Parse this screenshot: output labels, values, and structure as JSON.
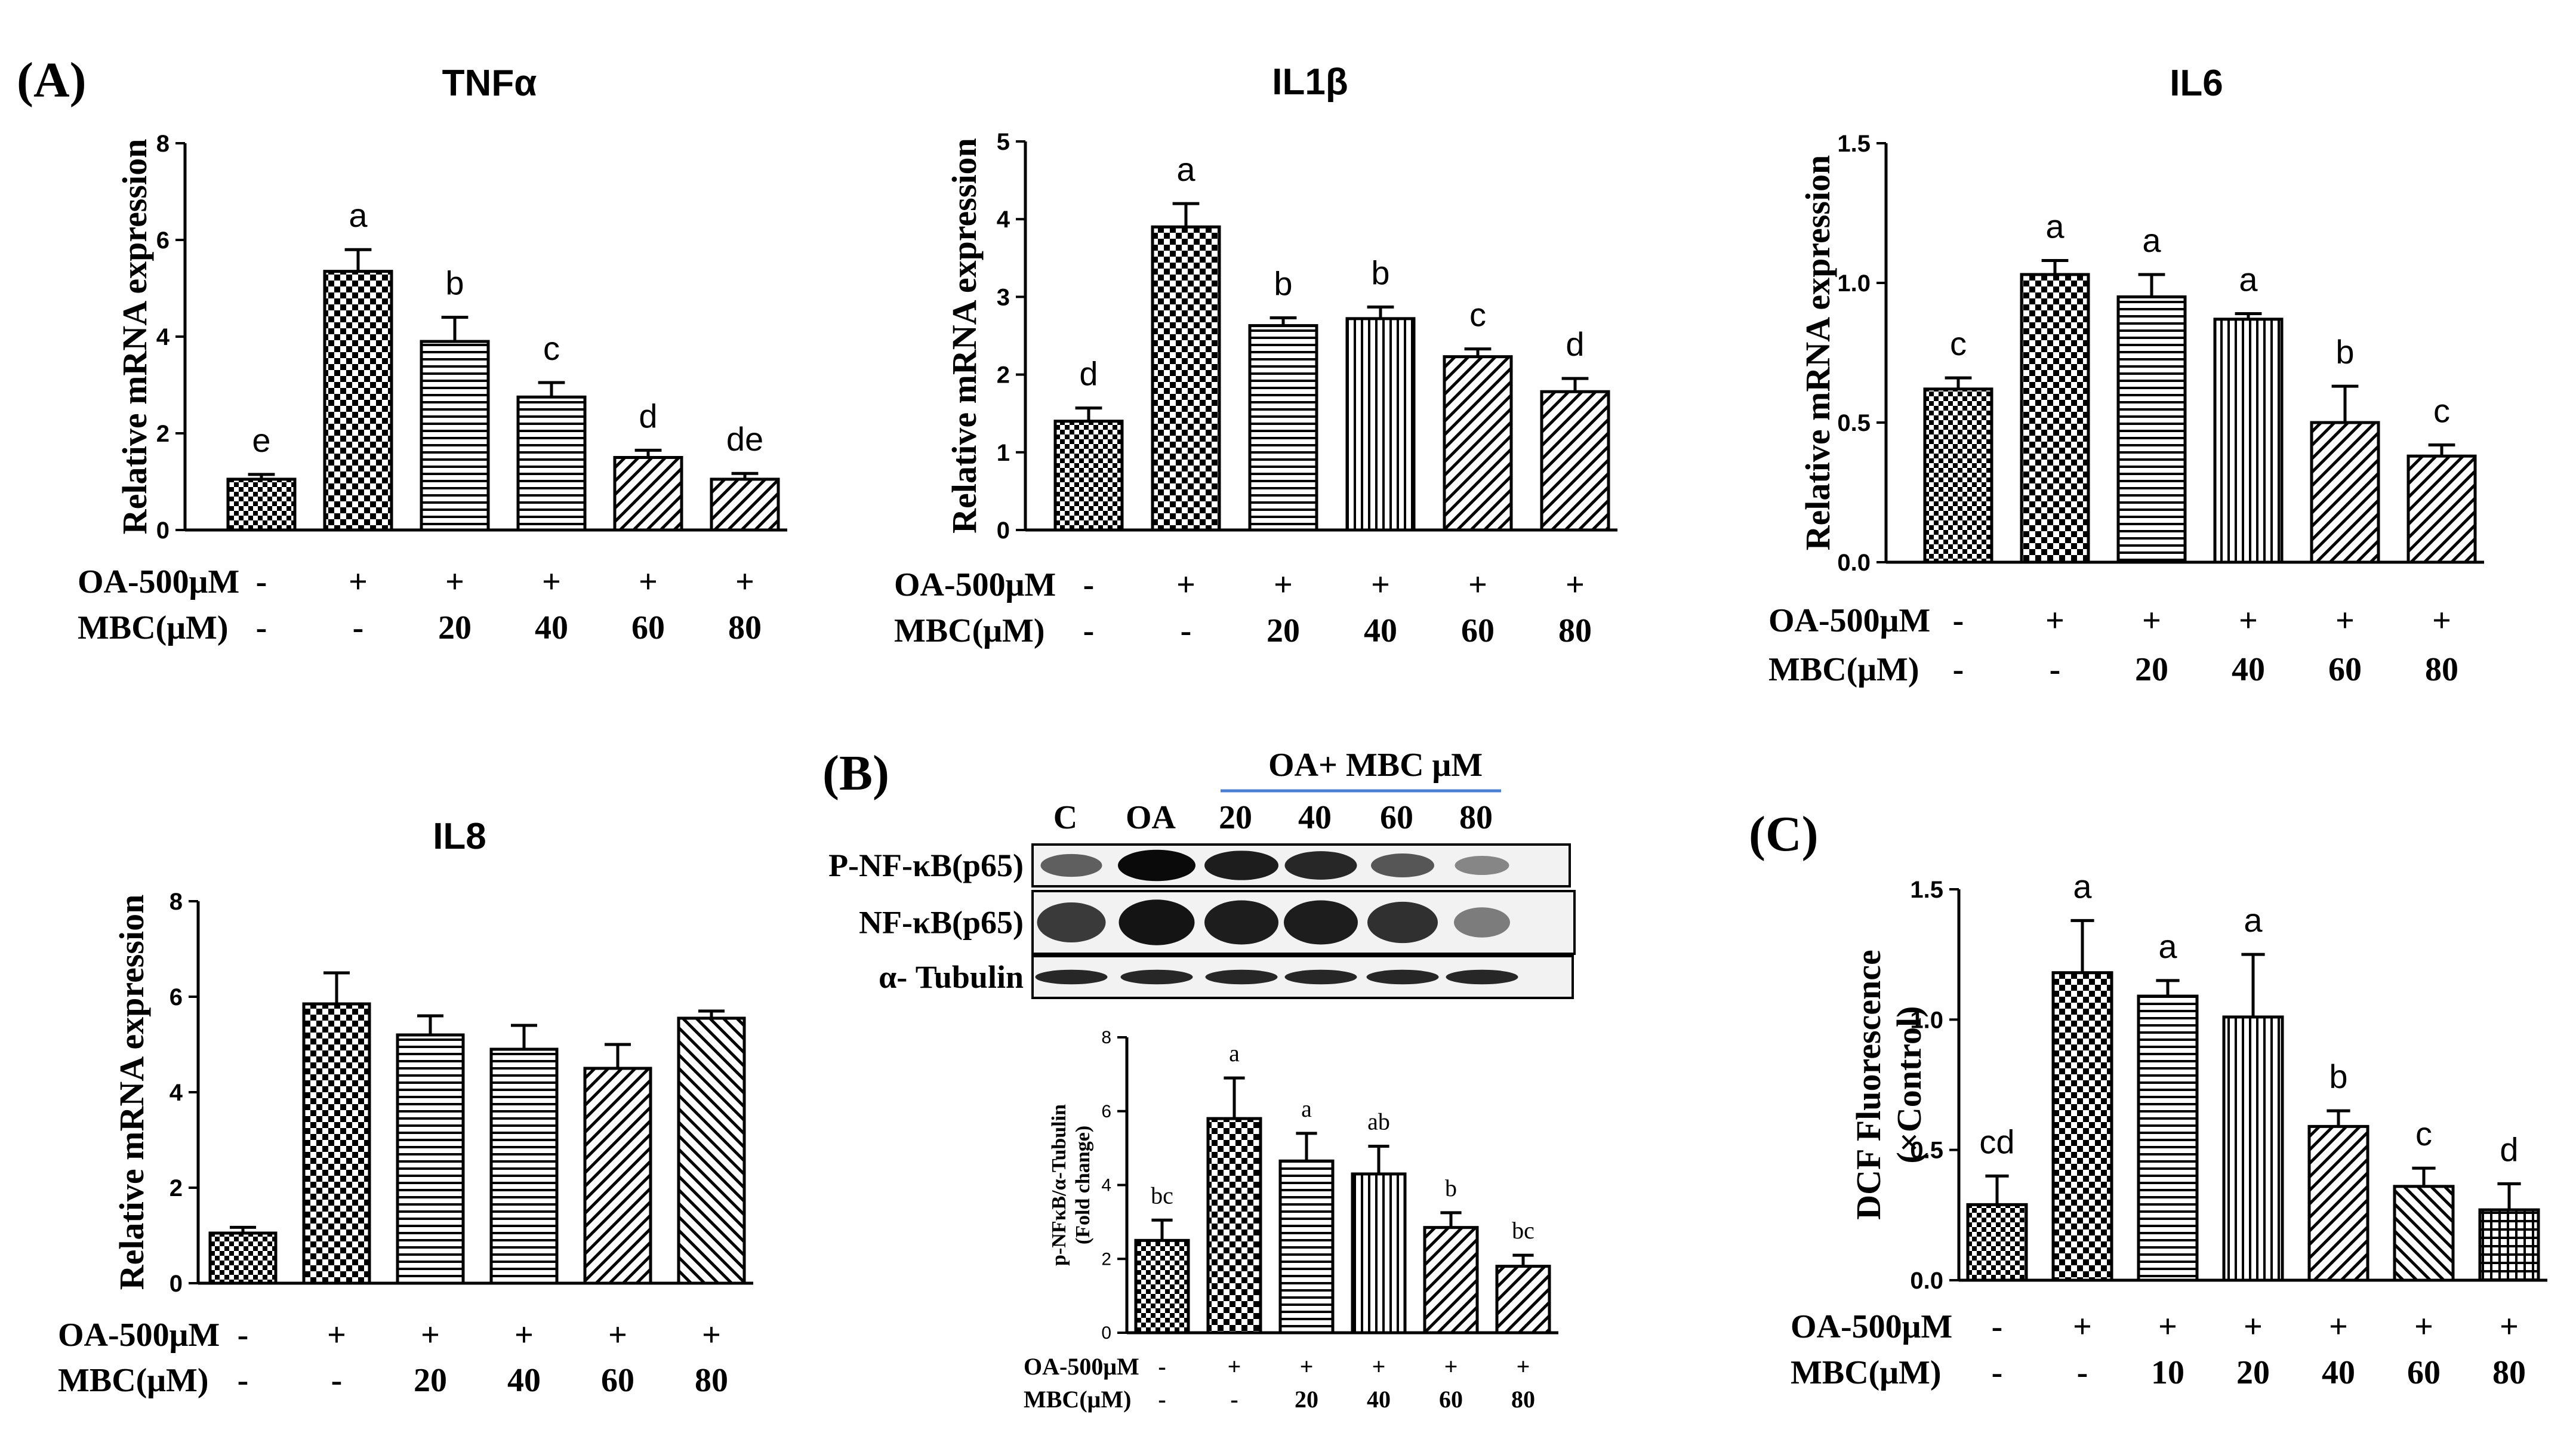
{
  "panels": {
    "A": "(A)",
    "B": "(B)",
    "C": "(C)"
  },
  "row_labels": {
    "oa": "OA-500μM",
    "mbc": "MBC(μM)"
  },
  "blot": {
    "group_label": "OA+ MBC μM",
    "columns": [
      "C",
      "OA",
      "20",
      "40",
      "60",
      "80"
    ],
    "rows": [
      {
        "label": "P-NF-κB(p65)",
        "intensity": [
          0.55,
          1.0,
          0.9,
          0.85,
          0.6,
          0.35
        ]
      },
      {
        "label": "NF-κB(p65)",
        "intensity": [
          0.75,
          0.95,
          0.9,
          0.9,
          0.8,
          0.4
        ]
      },
      {
        "label": "α- Tubulin",
        "intensity": [
          0.85,
          0.85,
          0.85,
          0.85,
          0.85,
          0.85
        ]
      }
    ]
  },
  "chart_data": [
    {
      "id": "tnf",
      "type": "bar",
      "title": "TNFα",
      "ylabel": "Relative mRNA expression",
      "ylim": [
        0,
        8
      ],
      "yticks": [
        "0",
        "2",
        "4",
        "6",
        "8"
      ],
      "values": [
        1.05,
        5.35,
        3.9,
        2.75,
        1.5,
        1.05
      ],
      "errors": [
        0.1,
        0.45,
        0.5,
        0.3,
        0.15,
        0.12
      ],
      "letters": [
        "e",
        "a",
        "b",
        "c",
        "d",
        "de"
      ],
      "oa": [
        "-",
        "+",
        "+",
        "+",
        "+",
        "+"
      ],
      "mbc": [
        "-",
        "-",
        "20",
        "40",
        "60",
        "80"
      ]
    },
    {
      "id": "il1b",
      "type": "bar",
      "title": "IL1β",
      "ylabel": "Relative mRNA expression",
      "ylim": [
        0,
        5
      ],
      "yticks": [
        "0",
        "1",
        "2",
        "3",
        "4",
        "5"
      ],
      "values": [
        1.4,
        3.9,
        2.63,
        2.72,
        2.23,
        1.78
      ],
      "errors": [
        0.17,
        0.3,
        0.1,
        0.15,
        0.1,
        0.17
      ],
      "letters": [
        "d",
        "a",
        "b",
        "b",
        "c",
        "d"
      ],
      "oa": [
        "-",
        "+",
        "+",
        "+",
        "+",
        "+"
      ],
      "mbc": [
        "-",
        "-",
        "20",
        "40",
        "60",
        "80"
      ]
    },
    {
      "id": "il6",
      "type": "bar",
      "title": "IL6",
      "ylabel": "Relative mRNA expression",
      "ylim": [
        0,
        1.5
      ],
      "yticks": [
        "0.0",
        "0.5",
        "1.0",
        "1.5"
      ],
      "values": [
        0.62,
        1.03,
        0.95,
        0.87,
        0.5,
        0.38
      ],
      "errors": [
        0.04,
        0.05,
        0.08,
        0.02,
        0.13,
        0.04
      ],
      "letters": [
        "c",
        "a",
        "a",
        "a",
        "b",
        "c"
      ],
      "oa": [
        "-",
        "+",
        "+",
        "+",
        "+",
        "+"
      ],
      "mbc": [
        "-",
        "-",
        "20",
        "40",
        "60",
        "80"
      ]
    },
    {
      "id": "il8",
      "type": "bar",
      "title": "IL8",
      "ylabel": "Relative mRNA expression",
      "ylim": [
        0,
        8
      ],
      "yticks": [
        "0",
        "2",
        "4",
        "6",
        "8"
      ],
      "values": [
        1.05,
        5.85,
        5.2,
        4.9,
        4.5,
        5.55
      ],
      "errors": [
        0.12,
        0.65,
        0.4,
        0.5,
        0.5,
        0.15
      ],
      "letters": [
        "",
        "",
        "",
        "",
        "",
        ""
      ],
      "oa": [
        "-",
        "+",
        "+",
        "+",
        "+",
        "+"
      ],
      "mbc": [
        "-",
        "-",
        "20",
        "40",
        "60",
        "80"
      ]
    },
    {
      "id": "nfkb",
      "type": "bar",
      "title": "",
      "ylabel": "p-NFκB/α-Tubulin",
      "ylabel2": "(Fold change)",
      "ylim": [
        0,
        8
      ],
      "yticks": [
        "0",
        "2",
        "4",
        "6",
        "8"
      ],
      "values": [
        2.5,
        5.8,
        4.65,
        4.3,
        2.85,
        1.8
      ],
      "errors": [
        0.55,
        1.1,
        0.75,
        0.75,
        0.4,
        0.3
      ],
      "letters": [
        "bc",
        "a",
        "a",
        "ab",
        "b",
        "bc"
      ],
      "oa": [
        "-",
        "+",
        "+",
        "+",
        "+",
        "+"
      ],
      "mbc": [
        "-",
        "-",
        "20",
        "40",
        "60",
        "80"
      ]
    },
    {
      "id": "dcf",
      "type": "bar",
      "title": "",
      "ylabel": "DCF Fluorescence",
      "ylabel2": "(×Control)",
      "ylim": [
        0,
        1.5
      ],
      "yticks": [
        "0.0",
        "0.5",
        "1.0",
        "1.5"
      ],
      "values": [
        0.29,
        1.18,
        1.09,
        1.01,
        0.59,
        0.36,
        0.27
      ],
      "errors": [
        0.11,
        0.2,
        0.06,
        0.24,
        0.06,
        0.07,
        0.1
      ],
      "letters": [
        "cd",
        "a",
        "a",
        "a",
        "b",
        "c",
        "d"
      ],
      "oa": [
        "-",
        "+",
        "+",
        "+",
        "+",
        "+",
        "+"
      ],
      "mbc": [
        "-",
        "-",
        "10",
        "20",
        "40",
        "60",
        "80"
      ]
    }
  ]
}
